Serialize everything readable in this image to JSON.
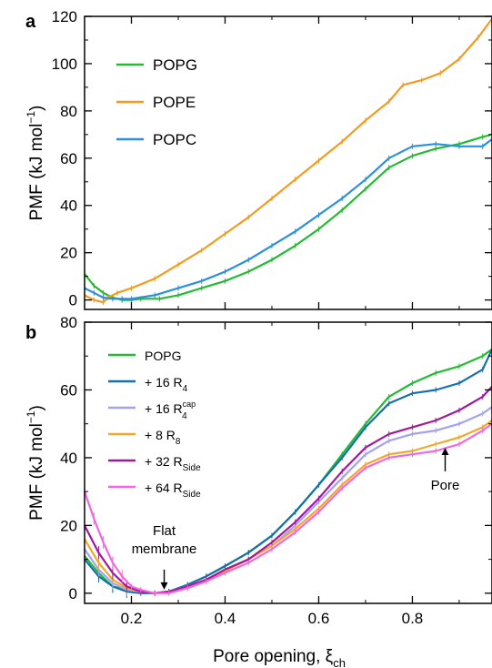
{
  "chart_data": [
    {
      "type": "line",
      "panel_label": "a",
      "xlim": [
        0.1,
        0.97
      ],
      "ylim": [
        -4,
        120
      ],
      "xticks": [
        0.2,
        0.4,
        0.6,
        0.8
      ],
      "yticks": [
        0,
        20,
        40,
        60,
        80,
        100,
        120
      ],
      "ytick_labels": [
        "0",
        "20",
        "40",
        "60",
        "80",
        "100",
        "120"
      ],
      "ylabel": "PMF (kJ mol",
      "ylabel_sup": "−1",
      "ylabel_tail": ")",
      "legend_position": "top-left",
      "grid": false,
      "series": [
        {
          "name": "POPG",
          "color": "#22bb33",
          "x": [
            0.1,
            0.12,
            0.14,
            0.16,
            0.18,
            0.2,
            0.22,
            0.26,
            0.3,
            0.35,
            0.4,
            0.45,
            0.5,
            0.55,
            0.6,
            0.65,
            0.7,
            0.75,
            0.8,
            0.85,
            0.9,
            0.95,
            0.97
          ],
          "y": [
            11,
            6,
            3,
            1,
            0,
            0,
            0.5,
            0.5,
            2,
            5,
            8,
            12,
            17,
            23,
            30,
            38,
            47,
            56,
            61,
            64,
            66,
            69,
            70
          ]
        },
        {
          "name": "POPE",
          "color": "#f39b20",
          "x": [
            0.1,
            0.12,
            0.14,
            0.15,
            0.17,
            0.2,
            0.25,
            0.3,
            0.35,
            0.4,
            0.45,
            0.5,
            0.55,
            0.6,
            0.65,
            0.7,
            0.75,
            0.78,
            0.82,
            0.86,
            0.9,
            0.94,
            0.97
          ],
          "y": [
            2,
            0,
            -1,
            1,
            3,
            5,
            9,
            15,
            21,
            28,
            35,
            43,
            51,
            59,
            67,
            76,
            84,
            91,
            93,
            96,
            102,
            111,
            119
          ]
        },
        {
          "name": "POPC",
          "color": "#2b8fe0",
          "x": [
            0.1,
            0.12,
            0.14,
            0.16,
            0.18,
            0.2,
            0.25,
            0.3,
            0.35,
            0.4,
            0.45,
            0.5,
            0.55,
            0.6,
            0.65,
            0.7,
            0.75,
            0.8,
            0.85,
            0.9,
            0.95,
            0.97
          ],
          "y": [
            5,
            3,
            1,
            0.5,
            0.5,
            0.5,
            2,
            5,
            8,
            12,
            17,
            23,
            29,
            36,
            43,
            51,
            60,
            65,
            66,
            65,
            65,
            68
          ]
        }
      ]
    },
    {
      "type": "line",
      "panel_label": "b",
      "xlim": [
        0.1,
        0.97
      ],
      "ylim": [
        -3,
        80
      ],
      "xticks": [
        0.2,
        0.4,
        0.6,
        0.8
      ],
      "xtick_labels": [
        "0.2",
        "0.4",
        "0.6",
        "0.8"
      ],
      "yticks": [
        0,
        20,
        40,
        60,
        80
      ],
      "ytick_labels": [
        "0",
        "20",
        "40",
        "60",
        "80"
      ],
      "xlabel": "Pore opening, ξ",
      "xlabel_sub": "ch",
      "ylabel": "PMF (kJ mol",
      "ylabel_sup": "−1",
      "ylabel_tail": ")",
      "legend_position": "top-left",
      "grid": false,
      "annotations": [
        {
          "text_lines": [
            "Flat",
            "membrane"
          ],
          "x": 0.27,
          "y": 0,
          "arrow": "down"
        },
        {
          "text_lines": [
            "Pore"
          ],
          "x": 0.87,
          "y": 44,
          "arrow": "up"
        }
      ],
      "series": [
        {
          "name": "POPG",
          "sub": "",
          "sup": "",
          "color": "#22bb33",
          "x": [
            0.1,
            0.13,
            0.16,
            0.19,
            0.22,
            0.25,
            0.28,
            0.32,
            0.36,
            0.4,
            0.45,
            0.5,
            0.55,
            0.6,
            0.65,
            0.7,
            0.75,
            0.8,
            0.85,
            0.9,
            0.95,
            0.97
          ],
          "y": [
            11,
            6,
            2,
            1,
            0.5,
            0,
            0.5,
            2.5,
            5,
            8,
            12,
            17,
            24,
            32,
            41,
            50,
            58,
            62,
            65,
            67,
            70,
            72
          ]
        },
        {
          "name": "+ 16 R",
          "sub": "4",
          "sup": "",
          "color": "#136fb0",
          "x": [
            0.1,
            0.13,
            0.16,
            0.19,
            0.22,
            0.25,
            0.28,
            0.32,
            0.36,
            0.4,
            0.45,
            0.5,
            0.55,
            0.6,
            0.65,
            0.7,
            0.75,
            0.8,
            0.85,
            0.9,
            0.95,
            0.97
          ],
          "y": [
            10,
            5,
            2,
            0.5,
            0,
            0,
            0.5,
            2.5,
            5,
            8,
            12,
            17,
            24,
            32,
            40,
            49,
            56,
            59,
            60,
            62,
            66,
            72
          ]
        },
        {
          "name": "+ 16 R",
          "sub": "4",
          "sup": "cap",
          "color": "#a4a2ef",
          "x": [
            0.1,
            0.13,
            0.16,
            0.19,
            0.22,
            0.25,
            0.28,
            0.32,
            0.36,
            0.4,
            0.45,
            0.5,
            0.55,
            0.6,
            0.65,
            0.7,
            0.75,
            0.8,
            0.85,
            0.9,
            0.95,
            0.97
          ],
          "y": [
            13,
            7,
            3,
            1,
            0.5,
            0,
            0.5,
            2,
            4,
            7,
            10,
            14,
            20,
            27,
            34,
            41,
            45,
            47,
            48,
            50,
            53,
            55
          ]
        },
        {
          "name": "+   8 R",
          "sub": "8",
          "sup": "",
          "color": "#f0a82a",
          "x": [
            0.1,
            0.13,
            0.16,
            0.19,
            0.22,
            0.25,
            0.28,
            0.32,
            0.36,
            0.4,
            0.45,
            0.5,
            0.55,
            0.6,
            0.65,
            0.7,
            0.75,
            0.8,
            0.85,
            0.9,
            0.95,
            0.97
          ],
          "y": [
            16,
            9,
            4,
            1.5,
            0.5,
            0,
            0.5,
            2,
            4,
            6.5,
            10,
            14,
            19,
            25,
            32,
            38,
            41,
            42,
            44,
            46,
            49,
            51
          ]
        },
        {
          "name": "+ 32 R",
          "sub": "Side",
          "sup": "",
          "color": "#a11a9a",
          "x": [
            0.1,
            0.13,
            0.16,
            0.19,
            0.22,
            0.25,
            0.28,
            0.32,
            0.36,
            0.4,
            0.45,
            0.5,
            0.55,
            0.6,
            0.65,
            0.7,
            0.75,
            0.8,
            0.85,
            0.9,
            0.95,
            0.97
          ],
          "y": [
            20,
            12,
            6,
            2,
            0.5,
            0,
            0.5,
            2,
            4,
            7,
            10,
            15,
            21,
            28,
            36,
            43,
            47,
            49,
            51,
            54,
            58,
            61
          ]
        },
        {
          "name": "+ 64 R",
          "sub": "Side",
          "sup": "",
          "color": "#f267df",
          "x": [
            0.1,
            0.12,
            0.14,
            0.16,
            0.18,
            0.2,
            0.22,
            0.25,
            0.28,
            0.32,
            0.36,
            0.4,
            0.45,
            0.5,
            0.55,
            0.6,
            0.65,
            0.7,
            0.75,
            0.8,
            0.85,
            0.9,
            0.95,
            0.97
          ],
          "y": [
            30,
            22,
            15,
            9,
            5,
            2,
            1,
            0,
            0,
            1.5,
            3.5,
            6,
            9,
            13,
            18,
            24,
            31,
            37,
            40,
            41,
            42,
            44,
            48,
            50
          ]
        }
      ]
    }
  ]
}
